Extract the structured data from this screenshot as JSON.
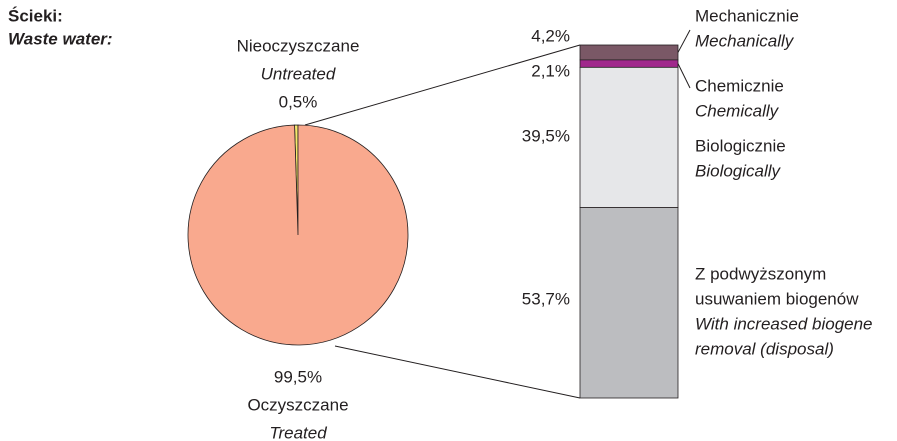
{
  "title": "Ścieki:",
  "subtitle": "Waste water:",
  "chart_data": {
    "type": "pie",
    "labels": [
      {
        "pl": [
          "Nieoczyszczane"
        ],
        "en": [
          "Untreated"
        ]
      },
      {
        "pl": [
          "Oczyszczane"
        ],
        "en": [
          "Treated"
        ]
      }
    ],
    "values": [
      0.5,
      99.5
    ],
    "value_labels": [
      "0,5%",
      "99,5%"
    ],
    "colors": [
      "#f6e96b",
      "#f9a98e"
    ],
    "breakdown": {
      "type": "bar",
      "labels": [
        {
          "pl": [
            "Mechanicznie"
          ],
          "en": [
            "Mechanically"
          ]
        },
        {
          "pl": [
            "Chemicznie"
          ],
          "en": [
            "Chemically"
          ]
        },
        {
          "pl": [
            "Biologicznie"
          ],
          "en": [
            "Biologically"
          ]
        },
        {
          "pl": [
            "Z podwyższonym",
            "usuwaniem biogenów"
          ],
          "en": [
            "With increased biogene",
            "removal (disposal)"
          ]
        }
      ],
      "values": [
        4.2,
        2.1,
        39.5,
        53.7
      ],
      "value_labels": [
        "4,2%",
        "2,1%",
        "39,5%",
        "53,7%"
      ],
      "colors": [
        "#7a5866",
        "#a0288c",
        "#e6e7e9",
        "#bcbdc0"
      ]
    }
  }
}
